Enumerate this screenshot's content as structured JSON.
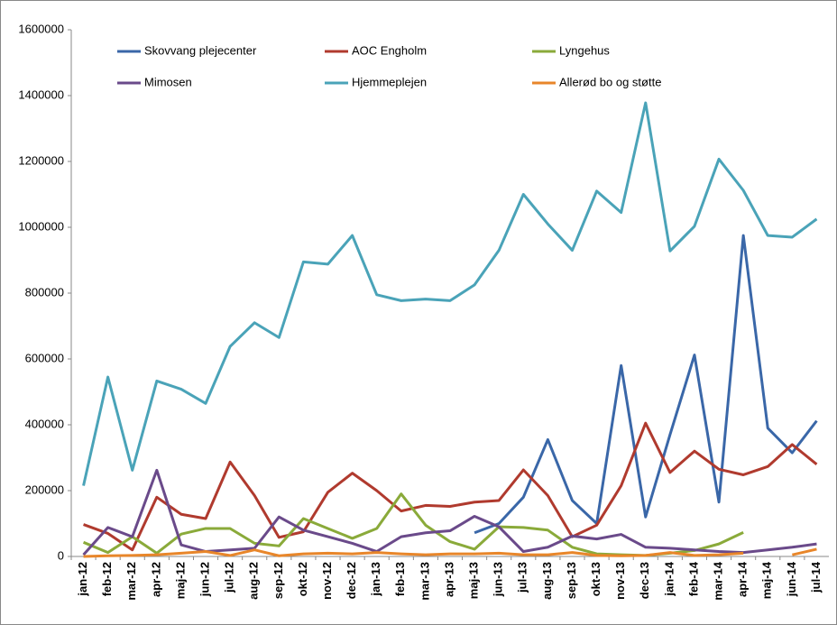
{
  "chart_data": {
    "type": "line",
    "categories": [
      "jan-12",
      "feb-12",
      "mar-12",
      "apr-12",
      "maj-12",
      "jun-12",
      "jul-12",
      "aug-12",
      "sep-12",
      "okt-12",
      "nov-12",
      "dec-12",
      "jan-13",
      "feb-13",
      "mar-13",
      "apr-13",
      "maj-13",
      "jun-13",
      "jul-13",
      "aug-13",
      "sep-13",
      "okt-13",
      "nov-13",
      "dec-13",
      "jan-14",
      "feb-14",
      "mar-14",
      "apr-14",
      "maj-14",
      "jun-14",
      "jul-14"
    ],
    "series": [
      {
        "name": "Skovvang plejecenter",
        "color": "#3a67a8",
        "values": [
          null,
          null,
          null,
          null,
          null,
          null,
          null,
          null,
          null,
          null,
          null,
          null,
          null,
          null,
          null,
          null,
          72000,
          100000,
          180000,
          355000,
          170000,
          100000,
          580000,
          120000,
          370000,
          612000,
          165000,
          975000,
          390000,
          315000,
          412000
        ]
      },
      {
        "name": "AOC Engholm",
        "color": "#b03a2e",
        "values": [
          97000,
          70000,
          20000,
          180000,
          128000,
          115000,
          287000,
          185000,
          58000,
          75000,
          195000,
          253000,
          200000,
          138000,
          155000,
          152000,
          165000,
          170000,
          263000,
          185000,
          60000,
          95000,
          215000,
          405000,
          255000,
          320000,
          265000,
          248000,
          273000,
          340000,
          280000
        ]
      },
      {
        "name": "Lyngehus",
        "color": "#8aaa3a",
        "values": [
          43000,
          12000,
          60000,
          10000,
          68000,
          85000,
          85000,
          40000,
          32000,
          115000,
          85000,
          55000,
          85000,
          190000,
          95000,
          45000,
          22000,
          90000,
          88000,
          80000,
          28000,
          8000,
          5000,
          3000,
          10000,
          18000,
          38000,
          73000,
          null,
          null,
          null
        ]
      },
      {
        "name": "Mimosen",
        "color": "#6a4a8a",
        "values": [
          5000,
          88000,
          60000,
          262000,
          35000,
          15000,
          20000,
          25000,
          120000,
          80000,
          60000,
          40000,
          15000,
          60000,
          72000,
          78000,
          122000,
          90000,
          15000,
          28000,
          62000,
          53000,
          67000,
          28000,
          25000,
          20000,
          15000,
          12000,
          20000,
          28000,
          38000
        ]
      },
      {
        "name": "Hjemmeplejen",
        "color": "#4aa3b8",
        "values": [
          215000,
          545000,
          262000,
          533000,
          508000,
          465000,
          638000,
          710000,
          665000,
          895000,
          888000,
          975000,
          795000,
          777000,
          782000,
          777000,
          825000,
          930000,
          1100000,
          1010000,
          930000,
          1110000,
          1045000,
          1378000,
          928000,
          1003000,
          1207000,
          1112000,
          975000,
          970000,
          1025000
        ]
      },
      {
        "name": "Allerød bo og støtte",
        "color": "#e8862a",
        "values": [
          0,
          2000,
          3000,
          5000,
          10000,
          15000,
          3000,
          20000,
          2000,
          8000,
          10000,
          8000,
          12000,
          8000,
          5000,
          8000,
          8000,
          10000,
          5000,
          5000,
          12000,
          3000,
          2000,
          3000,
          12000,
          3000,
          5000,
          10000,
          null,
          5000,
          22000
        ]
      }
    ],
    "ylim": [
      0,
      1600000
    ],
    "yticks": [
      0,
      200000,
      400000,
      600000,
      800000,
      1000000,
      1200000,
      1400000,
      1600000
    ],
    "grid": false,
    "legend": "top"
  }
}
